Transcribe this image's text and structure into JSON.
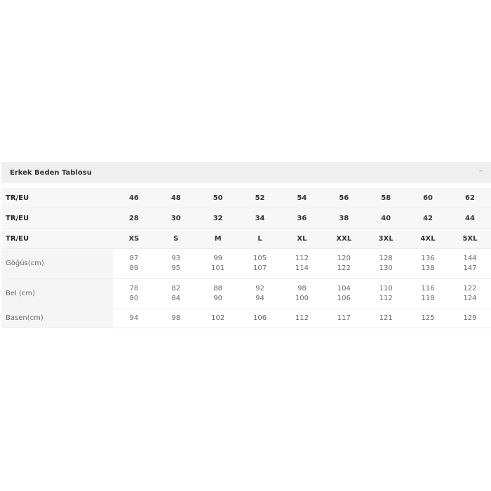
{
  "panel": {
    "title": "Erkek Beden Tablosu",
    "toggle_icon": "chevron-up-icon"
  },
  "table": {
    "header_rows": [
      {
        "label": "TR/EU",
        "values": [
          "46",
          "48",
          "50",
          "52",
          "54",
          "56",
          "58",
          "60",
          "62"
        ]
      },
      {
        "label": "TR/EU",
        "values": [
          "28",
          "30",
          "32",
          "34",
          "36",
          "38",
          "40",
          "42",
          "44"
        ]
      },
      {
        "label": "TR/EU",
        "values": [
          "XS",
          "S",
          "M",
          "L",
          "XL",
          "XXL",
          "3XL",
          "4XL",
          "5XL"
        ]
      }
    ],
    "measure_rows": [
      {
        "label": "Göğüs(cm)",
        "values": [
          [
            "87",
            "89"
          ],
          [
            "93",
            "95"
          ],
          [
            "99",
            "101"
          ],
          [
            "105",
            "107"
          ],
          [
            "112",
            "114"
          ],
          [
            "120",
            "122"
          ],
          [
            "128",
            "130"
          ],
          [
            "136",
            "138"
          ],
          [
            "144",
            "147"
          ]
        ]
      },
      {
        "label": "Bel (cm)",
        "values": [
          [
            "78",
            "80"
          ],
          [
            "82",
            "84"
          ],
          [
            "88",
            "90"
          ],
          [
            "92",
            "94"
          ],
          [
            "98",
            "100"
          ],
          [
            "104",
            "106"
          ],
          [
            "110",
            "112"
          ],
          [
            "116",
            "118"
          ],
          [
            "122",
            "124"
          ]
        ]
      },
      {
        "label": "Basen(cm)",
        "values": [
          [
            "94"
          ],
          [
            "98"
          ],
          [
            "102"
          ],
          [
            "106"
          ],
          [
            "112"
          ],
          [
            "117"
          ],
          [
            "121"
          ],
          [
            "125"
          ],
          [
            "129"
          ]
        ]
      }
    ]
  }
}
